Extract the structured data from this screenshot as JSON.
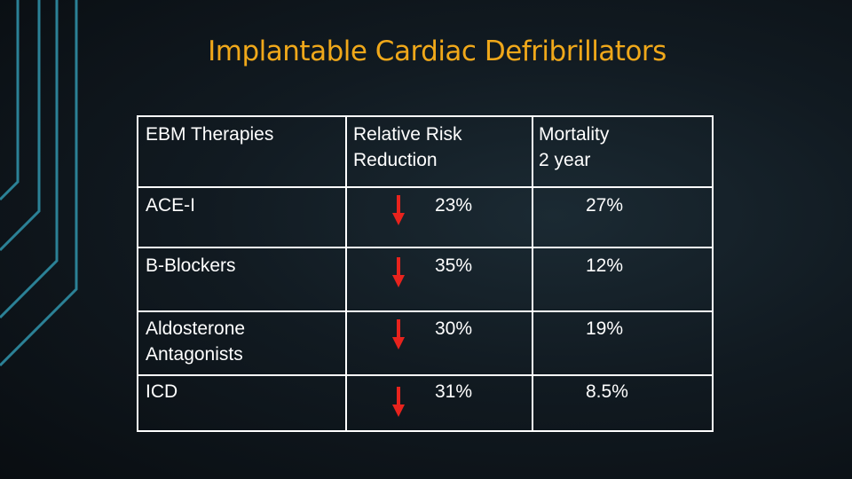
{
  "slide": {
    "title": "Implantable Cardiac Defribrillators"
  },
  "table": {
    "headers": {
      "therapy": "EBM Therapies",
      "rrr_line1": "Relative Risk",
      "rrr_line2": "Reduction",
      "mortality_line1": "Mortality",
      "mortality_line2": "2 year"
    },
    "rows": [
      {
        "therapy_line1": "ACE-I",
        "therapy_line2": "",
        "rrr": "23%",
        "mortality": "27%",
        "trend": "decrease"
      },
      {
        "therapy_line1": "B-Blockers",
        "therapy_line2": "",
        "rrr": "35%",
        "mortality": "12%",
        "trend": "decrease"
      },
      {
        "therapy_line1": "Aldosterone",
        "therapy_line2": "Antagonists",
        "rrr": "30%",
        "mortality": "19%",
        "trend": "decrease"
      },
      {
        "therapy_line1": "ICD",
        "therapy_line2": "",
        "rrr": "31%",
        "mortality": "8.5%",
        "trend": "decrease"
      }
    ]
  },
  "colors": {
    "title": "#f0a81a",
    "text": "#ffffff",
    "arrow": "#e8231d",
    "decoration": "#2e8a9e"
  }
}
